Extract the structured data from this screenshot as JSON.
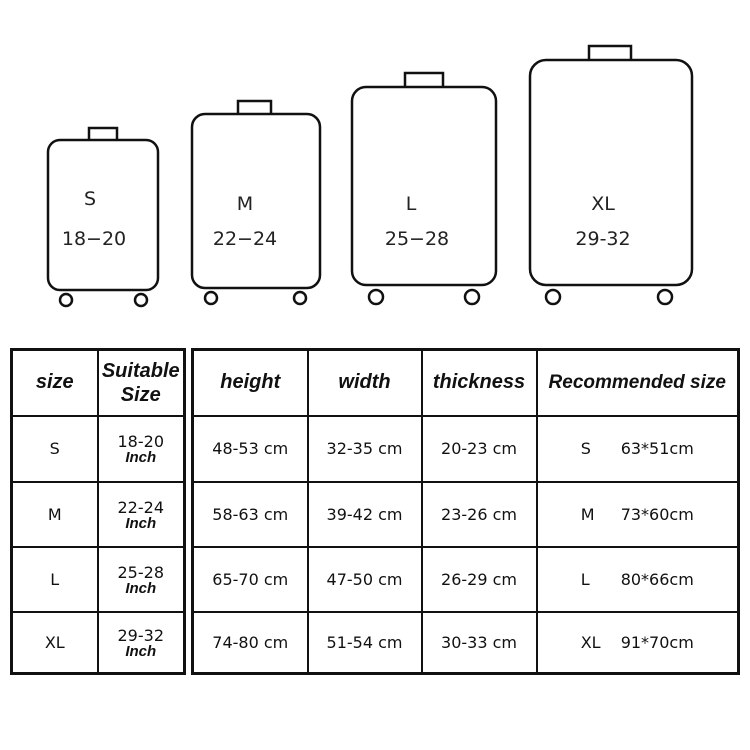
{
  "suitcases": [
    {
      "size": "S",
      "range": "18−20"
    },
    {
      "size": "M",
      "range": "22−24"
    },
    {
      "size": "L",
      "range": "25−28"
    },
    {
      "size": "XL",
      "range": "29-32"
    }
  ],
  "left_table": {
    "headers": [
      "size",
      "Suitable Size"
    ],
    "unit": "Inch",
    "rows": [
      {
        "size": "S",
        "suitable": "18-20"
      },
      {
        "size": "M",
        "suitable": "22-24"
      },
      {
        "size": "L",
        "suitable": "25-28"
      },
      {
        "size": "XL",
        "suitable": "29-32"
      }
    ]
  },
  "right_table": {
    "headers": [
      "height",
      "width",
      "thickness",
      "Recommended size"
    ],
    "rows": [
      {
        "height": "48-53 cm",
        "width": "32-35 cm",
        "thickness": "20-23 cm",
        "rec_size": "S",
        "rec_dim": "63*51cm"
      },
      {
        "height": "58-63 cm",
        "width": "39-42 cm",
        "thickness": "23-26 cm",
        "rec_size": "M",
        "rec_dim": "73*60cm"
      },
      {
        "height": "65-70 cm",
        "width": "47-50 cm",
        "thickness": "26-29 cm",
        "rec_size": "L",
        "rec_dim": "80*66cm"
      },
      {
        "height": "74-80 cm",
        "width": "51-54 cm",
        "thickness": "30-33 cm",
        "rec_size": "XL",
        "rec_dim": "91*70cm"
      }
    ]
  }
}
